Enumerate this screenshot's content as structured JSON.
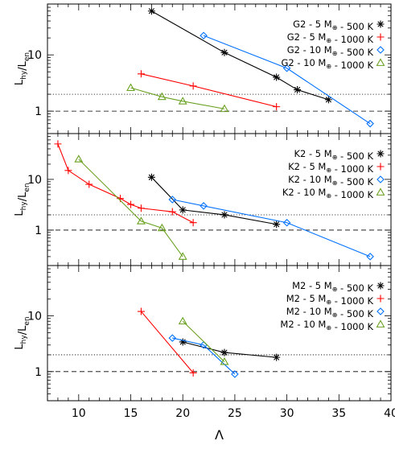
{
  "chart_data": [
    {
      "type": "line",
      "ylabel": "L_hy/L_en",
      "yscale": "log",
      "ylim": [
        0.4,
        80
      ],
      "xlim": [
        7,
        40
      ],
      "yticks": [
        1,
        10
      ],
      "yticklabels": [
        "1",
        "10"
      ],
      "reference_lines": [
        {
          "y": 2,
          "style": "dotted"
        },
        {
          "y": 1,
          "style": "dashed"
        }
      ],
      "legend_position": "top-right",
      "series": [
        {
          "name": "G2 - 5 M⊕ - 500 K",
          "color": "#000000",
          "marker": "asterisk",
          "x": [
            17,
            24,
            29,
            31,
            34
          ],
          "y": [
            60,
            11,
            4,
            2.4,
            1.6
          ]
        },
        {
          "name": "G2 - 5 M⊕ - 1000 K",
          "color": "#ff0000",
          "marker": "plus",
          "x": [
            16,
            21,
            29
          ],
          "y": [
            4.6,
            2.8,
            1.2
          ]
        },
        {
          "name": "G2 - 10 M⊕ - 500 K",
          "color": "#0070ff",
          "marker": "diamond",
          "x": [
            22,
            30,
            38
          ],
          "y": [
            22,
            5.8,
            0.6
          ]
        },
        {
          "name": "G2 - 10 M⊕ - 1000 K",
          "color": "#6aa121",
          "marker": "triangle",
          "x": [
            15,
            18,
            20,
            24
          ],
          "y": [
            2.6,
            1.8,
            1.5,
            1.1
          ]
        }
      ]
    },
    {
      "type": "line",
      "ylabel": "L_hy/L_en",
      "yscale": "log",
      "ylim": [
        0.2,
        80
      ],
      "xlim": [
        7,
        40
      ],
      "yticks": [
        1,
        10
      ],
      "yticklabels": [
        "1",
        "10"
      ],
      "reference_lines": [
        {
          "y": 2,
          "style": "dotted"
        },
        {
          "y": 1,
          "style": "dashed"
        }
      ],
      "legend_position": "top-right",
      "series": [
        {
          "name": "K2 - 5 M⊕ - 500 K",
          "color": "#000000",
          "marker": "asterisk",
          "x": [
            17,
            20,
            24,
            29
          ],
          "y": [
            11,
            2.5,
            2.0,
            1.3
          ]
        },
        {
          "name": "K2 - 5 M⊕ - 1000 K",
          "color": "#ff0000",
          "marker": "plus",
          "x": [
            8,
            9,
            11,
            14,
            15,
            16,
            19,
            21
          ],
          "y": [
            50,
            15,
            8,
            4.2,
            3.2,
            2.7,
            2.3,
            1.4
          ]
        },
        {
          "name": "K2 - 10 M⊕ - 500 K",
          "color": "#0070ff",
          "marker": "diamond",
          "x": [
            19,
            22,
            30,
            38
          ],
          "y": [
            4.0,
            3.0,
            1.4,
            0.3
          ]
        },
        {
          "name": "K2 - 10 M⊕ - 1000 K",
          "color": "#6aa121",
          "marker": "triangle",
          "x": [
            10,
            16,
            18,
            20
          ],
          "y": [
            25,
            1.5,
            1.1,
            0.3
          ]
        }
      ]
    },
    {
      "type": "line",
      "xlabel": "Λ",
      "ylabel": "L_hy/L_en",
      "yscale": "log",
      "ylim": [
        0.3,
        80
      ],
      "xlim": [
        7,
        40
      ],
      "xticks": [
        10,
        15,
        20,
        25,
        30,
        35,
        40
      ],
      "xticklabels": [
        "10",
        "15",
        "20",
        "25",
        "30",
        "35",
        "40"
      ],
      "yticks": [
        1,
        10
      ],
      "yticklabels": [
        "1",
        "10"
      ],
      "reference_lines": [
        {
          "y": 2,
          "style": "dotted"
        },
        {
          "y": 1,
          "style": "dashed"
        }
      ],
      "legend_position": "top-right",
      "series": [
        {
          "name": "M2 - 5 M⊕ - 500 K",
          "color": "#000000",
          "marker": "asterisk",
          "x": [
            20,
            24,
            29
          ],
          "y": [
            3.4,
            2.2,
            1.8
          ]
        },
        {
          "name": "M2 - 5 M⊕ - 1000 K",
          "color": "#ff0000",
          "marker": "plus",
          "x": [
            16,
            21
          ],
          "y": [
            12,
            0.95
          ]
        },
        {
          "name": "M2 - 10 M⊕ - 500 K",
          "color": "#0070ff",
          "marker": "diamond",
          "x": [
            19,
            22,
            25
          ],
          "y": [
            4.0,
            3.0,
            0.9
          ]
        },
        {
          "name": "M2 - 10 M⊕ - 1000 K",
          "color": "#6aa121",
          "marker": "triangle",
          "x": [
            20,
            24
          ],
          "y": [
            8,
            1.5
          ]
        }
      ]
    }
  ]
}
